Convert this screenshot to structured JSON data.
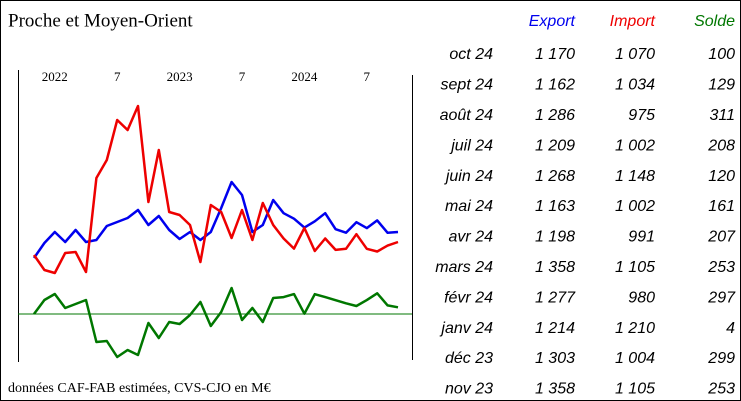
{
  "title": "Proche et Moyen-Orient",
  "footnote": "données CAF-FAB estimées, CVS-CJO en M€",
  "chart_data": {
    "type": "line",
    "categories": [
      null,
      null,
      "2022",
      null,
      null,
      null,
      null,
      null,
      "7",
      null,
      null,
      null,
      null,
      null,
      "2023",
      null,
      null,
      null,
      null,
      null,
      "7",
      null,
      null,
      null,
      null,
      null,
      "2024",
      null,
      null,
      null,
      null,
      null,
      "7",
      null,
      null,
      null
    ],
    "series": [
      {
        "name": "Export",
        "color": "#0000ee",
        "values": [
          910,
          1060,
          1170,
          1070,
          1190,
          1070,
          1090,
          1230,
          1270,
          1310,
          1390,
          1240,
          1330,
          1190,
          1100,
          1170,
          1090,
          1170,
          1410,
          1670,
          1540,
          1170,
          1240,
          1490,
          1358,
          1303,
          1214,
          1277,
          1358,
          1198,
          1163,
          1268,
          1209,
          1286,
          1162,
          1170
        ]
      },
      {
        "name": "Import",
        "color": "#ee0000",
        "values": [
          940,
          790,
          760,
          960,
          970,
          770,
          1710,
          1890,
          2290,
          2190,
          2430,
          1470,
          1990,
          1370,
          1340,
          1240,
          870,
          1440,
          1370,
          1110,
          1390,
          1090,
          1460,
          1240,
          1105,
          1004,
          1210,
          980,
          1105,
          991,
          1002,
          1148,
          1002,
          975,
          1034,
          1070
        ]
      },
      {
        "name": "Solde",
        "color": "#007700",
        "axis": "y2",
        "values": [
          0,
          210,
          300,
          90,
          150,
          210,
          -420,
          -405,
          -645,
          -540,
          -615,
          -135,
          -360,
          -120,
          -150,
          -15,
          180,
          -180,
          30,
          390,
          -90,
          90,
          -120,
          240,
          253,
          299,
          4,
          297,
          253,
          207,
          161,
          120,
          208,
          311,
          129,
          100
        ]
      }
    ],
    "ylim": [
      -110,
      2790
    ],
    "y2lim": [
      -690,
      3660
    ],
    "hline": {
      "axis": "y2",
      "value": 0,
      "color": "#007700"
    }
  },
  "table": {
    "columns": [
      "Export",
      "Import",
      "Solde"
    ],
    "column_colors": [
      "#0000ee",
      "#ee0000",
      "#007700"
    ],
    "rows": [
      [
        "oct 24",
        "1 170",
        "1 070",
        "100"
      ],
      [
        "sept 24",
        "1 162",
        "1 034",
        "129"
      ],
      [
        "août 24",
        "1 286",
        "975",
        "311"
      ],
      [
        "juil 24",
        "1 209",
        "1 002",
        "208"
      ],
      [
        "juin 24",
        "1 268",
        "1 148",
        "120"
      ],
      [
        "mai 24",
        "1 163",
        "1 002",
        "161"
      ],
      [
        "avr 24",
        "1 198",
        "991",
        "207"
      ],
      [
        "mars 24",
        "1 358",
        "1 105",
        "253"
      ],
      [
        "févr 24",
        "1 277",
        "980",
        "297"
      ],
      [
        "janv 24",
        "1 214",
        "1 210",
        "4"
      ],
      [
        "déc 23",
        "1 303",
        "1 004",
        "299"
      ],
      [
        "nov 23",
        "1 358",
        "1 105",
        "253"
      ]
    ]
  }
}
